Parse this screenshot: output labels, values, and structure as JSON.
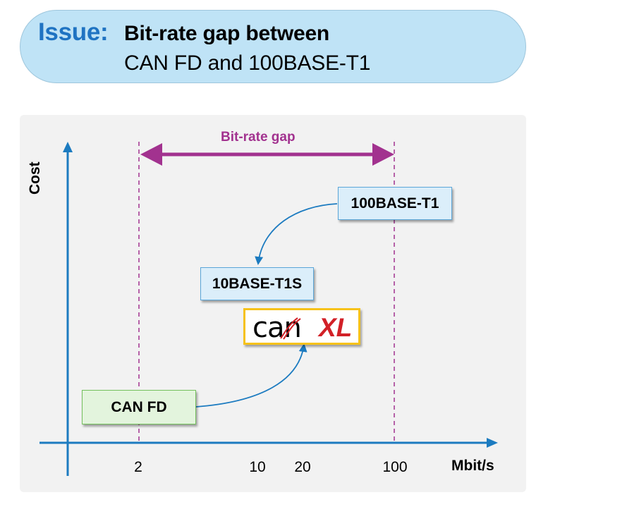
{
  "header": {
    "issue_label": "Issue:",
    "title_line1": "Bit-rate gap between",
    "title_line2": "CAN FD and 100BASE-T1"
  },
  "diagram": {
    "y_axis_label": "Cost",
    "x_axis_unit": "Mbit/s",
    "x_ticks": [
      "2",
      "10",
      "20",
      "100"
    ],
    "gap_label": "Bit-rate gap",
    "boxes": {
      "base_t1": "100BASE-T1",
      "base_t1s": "10BASE-T1S",
      "can_fd": "CAN FD"
    },
    "logo": {
      "left_text": "can",
      "right_text": "XL"
    },
    "colors": {
      "axis": "#1c7bc0",
      "gap": "#a2328f",
      "arrow": "#1c7bc0",
      "logo_border": "#f6c21a",
      "logo_red": "#d22027"
    }
  }
}
